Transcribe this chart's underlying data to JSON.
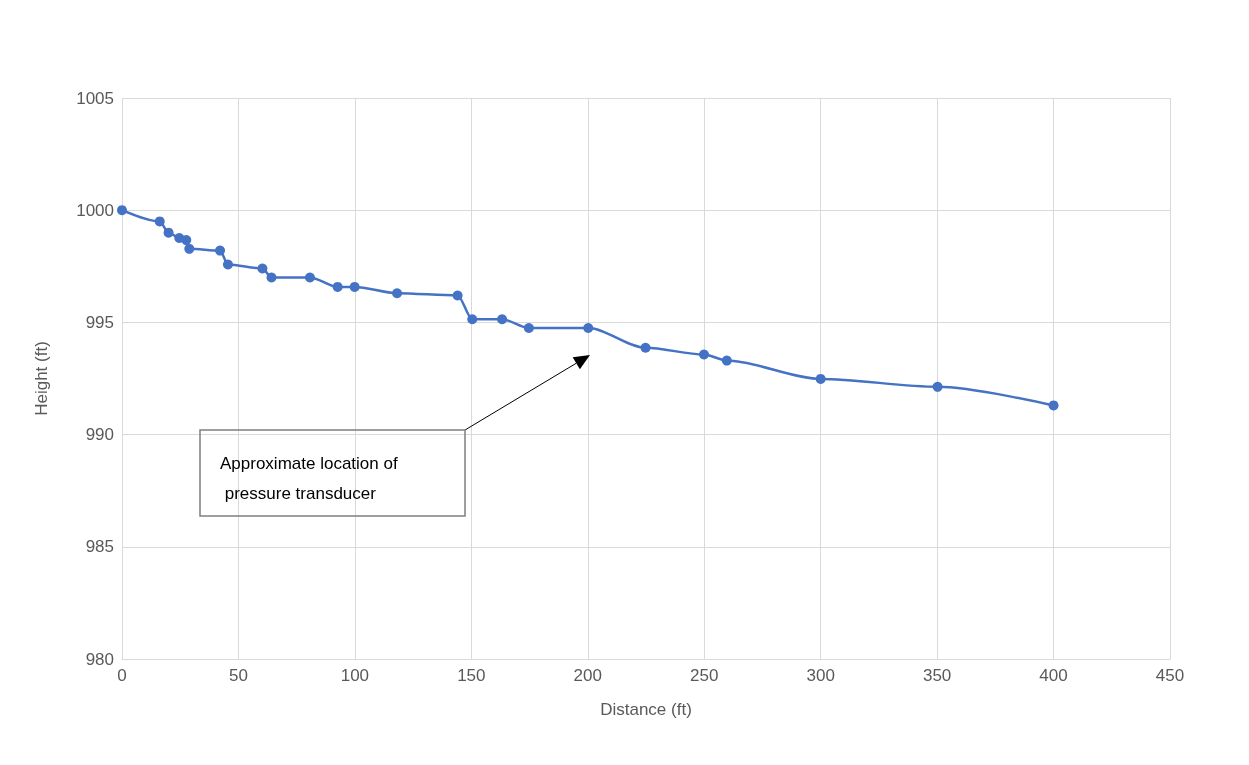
{
  "chart_data": {
    "type": "line",
    "xlabel": "Distance (ft)",
    "ylabel": "Height (ft)",
    "x": [
      0,
      16.2,
      20,
      24.6,
      27.6,
      28.9,
      42.1,
      45.5,
      60.3,
      64.2,
      80.7,
      92.6,
      99.9,
      118.1,
      144.1,
      150.4,
      163.2,
      174.7,
      200.2,
      224.8,
      249.9,
      259.7,
      300,
      350.2,
      400
    ],
    "series": [
      {
        "color": "#4472c4",
        "values": [
          1000,
          999.5,
          999,
          998.76,
          998.67,
          998.28,
          998.2,
          997.58,
          997.4,
          997,
          997,
          996.58,
          996.58,
          996.3,
          996.2,
          995.14,
          995.14,
          994.75,
          994.75,
          993.87,
          993.57,
          993.3,
          992.48,
          992.13,
          991.3
        ]
      }
    ],
    "xlim": [
      0,
      450
    ],
    "xticks": [
      0,
      50,
      100,
      150,
      200,
      250,
      300,
      350,
      400,
      450
    ],
    "ylim": [
      980,
      1005
    ],
    "yticks": [
      980,
      985,
      990,
      995,
      1000,
      1005
    ],
    "grid": true,
    "marker": "circle",
    "line_style": "solid",
    "annotations": [
      "Approximate location of pressure transducer"
    ]
  }
}
